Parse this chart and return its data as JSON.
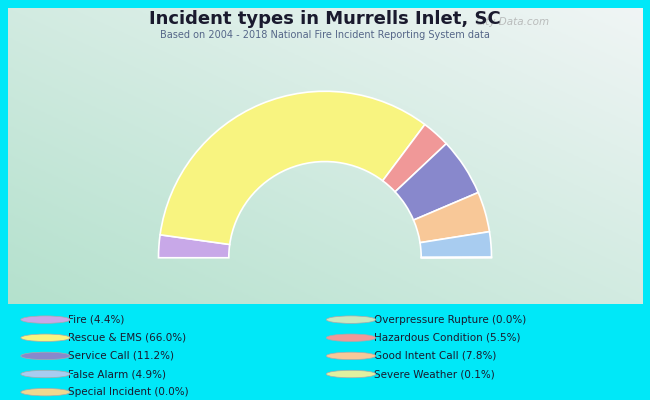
{
  "title": "Incident types in Murrells Inlet, SC",
  "subtitle": "Based on 2004 - 2018 National Fire Incident Reporting System data",
  "background_color": "#00e8f8",
  "watermark": "City-Data.com",
  "segments": [
    {
      "label": "Fire",
      "pct": 4.4,
      "color": "#c8a8e8"
    },
    {
      "label": "Rescue & EMS",
      "pct": 66.0,
      "color": "#f8f480"
    },
    {
      "label": "Hazardous Condition",
      "pct": 5.5,
      "color": "#f09898"
    },
    {
      "label": "Service Call",
      "pct": 11.2,
      "color": "#8888cc"
    },
    {
      "label": "Good Intent Call",
      "pct": 7.8,
      "color": "#f8c898"
    },
    {
      "label": "False Alarm",
      "pct": 4.9,
      "color": "#a8ccf0"
    },
    {
      "label": "Special Incident",
      "pct": 0.0,
      "color": "#f0d890"
    },
    {
      "label": "Overpressure Rupture",
      "pct": 0.0,
      "color": "#c8e8c0"
    },
    {
      "label": "Severe Weather",
      "pct": 0.1,
      "color": "#e0f0a0"
    }
  ],
  "legend_items_left": [
    {
      "label": "Fire (4.4%)",
      "color": "#c8a8e8"
    },
    {
      "label": "Rescue & EMS (66.0%)",
      "color": "#f8f480"
    },
    {
      "label": "Service Call (11.2%)",
      "color": "#8888cc"
    },
    {
      "label": "False Alarm (4.9%)",
      "color": "#a8ccf0"
    },
    {
      "label": "Special Incident (0.0%)",
      "color": "#f0d890"
    }
  ],
  "legend_items_right": [
    {
      "label": "Overpressure Rupture (0.0%)",
      "color": "#c8e8c0"
    },
    {
      "label": "Hazardous Condition (5.5%)",
      "color": "#f09898"
    },
    {
      "label": "Good Intent Call (7.8%)",
      "color": "#f8c898"
    },
    {
      "label": "Severe Weather (0.1%)",
      "color": "#e0f0a0"
    }
  ]
}
